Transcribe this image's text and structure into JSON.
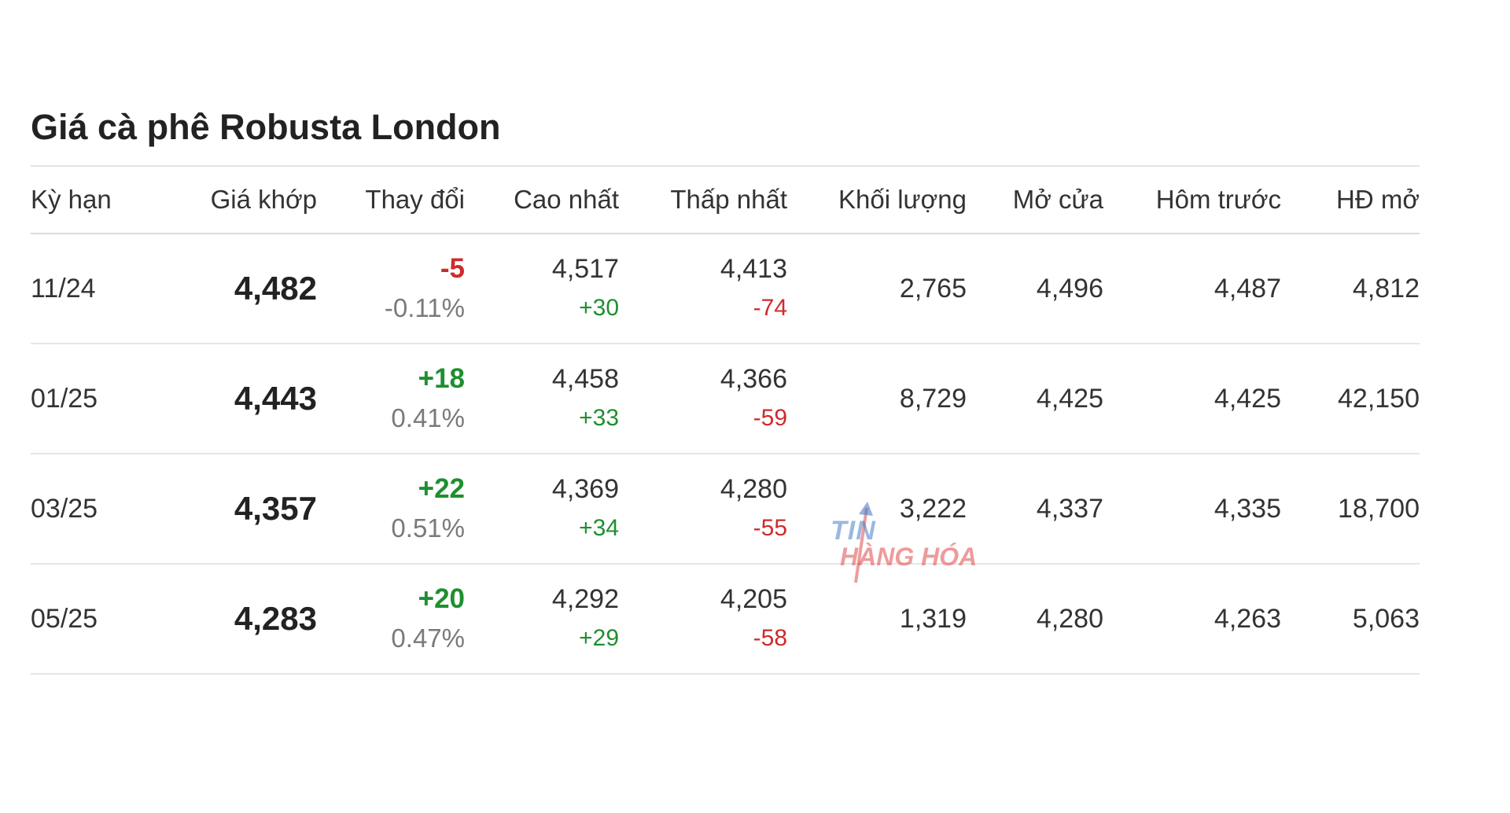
{
  "title": "Giá cà phê Robusta London",
  "columns": [
    "Kỳ hạn",
    "Giá khớp",
    "Thay đổi",
    "Cao nhất",
    "Thấp nhất",
    "Khối lượng",
    "Mở cửa",
    "Hôm trước",
    "HĐ mở"
  ],
  "rows": [
    {
      "term": "11/24",
      "price": "4,482",
      "change": "-5",
      "change_pct": "-0.11%",
      "change_dir": "down",
      "high": "4,517",
      "high_chg": "+30",
      "low": "4,413",
      "low_chg": "-74",
      "volume": "2,765",
      "open": "4,496",
      "prev": "4,487",
      "oi": "4,812"
    },
    {
      "term": "01/25",
      "price": "4,443",
      "change": "+18",
      "change_pct": "0.41%",
      "change_dir": "up",
      "high": "4,458",
      "high_chg": "+33",
      "low": "4,366",
      "low_chg": "-59",
      "volume": "8,729",
      "open": "4,425",
      "prev": "4,425",
      "oi": "42,150"
    },
    {
      "term": "03/25",
      "price": "4,357",
      "change": "+22",
      "change_pct": "0.51%",
      "change_dir": "up",
      "high": "4,369",
      "high_chg": "+34",
      "low": "4,280",
      "low_chg": "-55",
      "volume": "3,222",
      "open": "4,337",
      "prev": "4,335",
      "oi": "18,700"
    },
    {
      "term": "05/25",
      "price": "4,283",
      "change": "+20",
      "change_pct": "0.47%",
      "change_dir": "up",
      "high": "4,292",
      "high_chg": "+29",
      "low": "4,205",
      "low_chg": "-58",
      "volume": "1,319",
      "open": "4,280",
      "prev": "4,263",
      "oi": "5,063"
    }
  ],
  "watermark": {
    "line1": "TIN",
    "line2": "HÀNG HÓA"
  },
  "colors": {
    "up": "#1e8f2f",
    "down": "#d02a2a",
    "muted": "#7a7a7a"
  }
}
